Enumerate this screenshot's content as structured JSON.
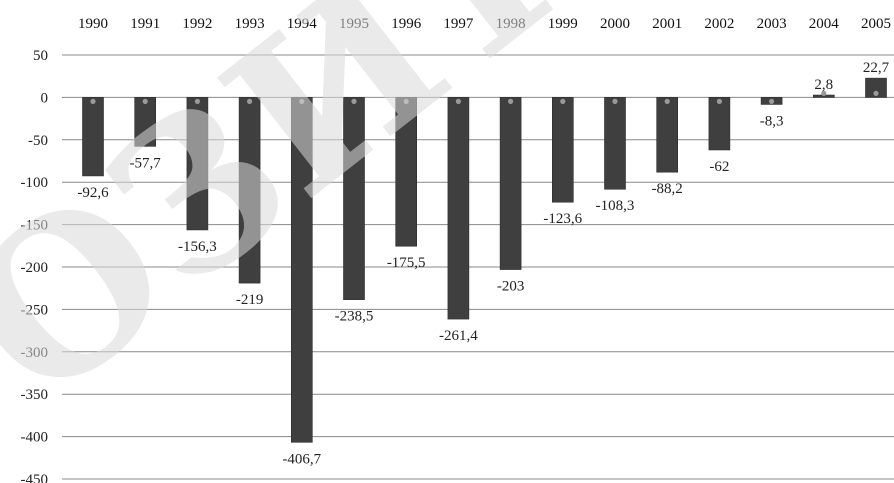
{
  "chart_data": {
    "type": "bar",
    "categories": [
      "1990",
      "1991",
      "1992",
      "1993",
      "1994",
      "1995",
      "1996",
      "1997",
      "1998",
      "1999",
      "2000",
      "2001",
      "2002",
      "2003",
      "2004",
      "2005"
    ],
    "values": [
      -92.6,
      -57.7,
      -156.3,
      -219,
      -406.7,
      -238.5,
      -175.5,
      -261.4,
      -203,
      -123.6,
      -108.3,
      -88.2,
      -62,
      -8.3,
      2.8,
      22.7
    ],
    "value_labels": [
      "-92,6",
      "-57,7",
      "-156,3",
      "-219",
      "-406,7",
      "-238,5",
      "-175,5",
      "-261,4",
      "-203",
      "-123,6",
      "-108,3",
      "-88,2",
      "-62",
      "-8,3",
      "2,8",
      "22,7"
    ],
    "y_ticks": [
      50,
      0,
      -50,
      -100,
      -150,
      -200,
      -250,
      -300,
      -350,
      -400,
      -450
    ],
    "ylim": [
      -450,
      50
    ],
    "grid": true,
    "x_axis_position": "top",
    "bar_color": "#3f3f3f",
    "title": "",
    "xlabel": "",
    "ylabel": ""
  },
  "watermark": {
    "text": "ОЗИТОР",
    "color": "#d9d9d9"
  }
}
